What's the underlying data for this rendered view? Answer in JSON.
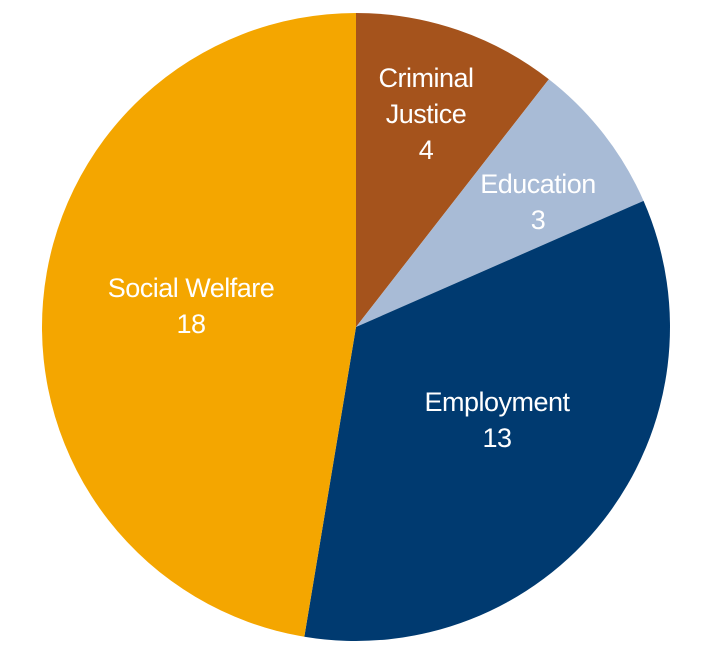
{
  "chart_data": {
    "type": "pie",
    "start": "top",
    "direction": "clockwise",
    "slices": [
      {
        "label_lines": [
          "Criminal",
          "Justice"
        ],
        "value": 4,
        "color": "#A5531C"
      },
      {
        "label_lines": [
          "Education"
        ],
        "value": 3,
        "color": "#A8BBD6"
      },
      {
        "label_lines": [
          "Employment"
        ],
        "value": 13,
        "color": "#003A70"
      },
      {
        "label_lines": [
          "Social Welfare"
        ],
        "value": 18,
        "color": "#F4A600"
      }
    ]
  }
}
